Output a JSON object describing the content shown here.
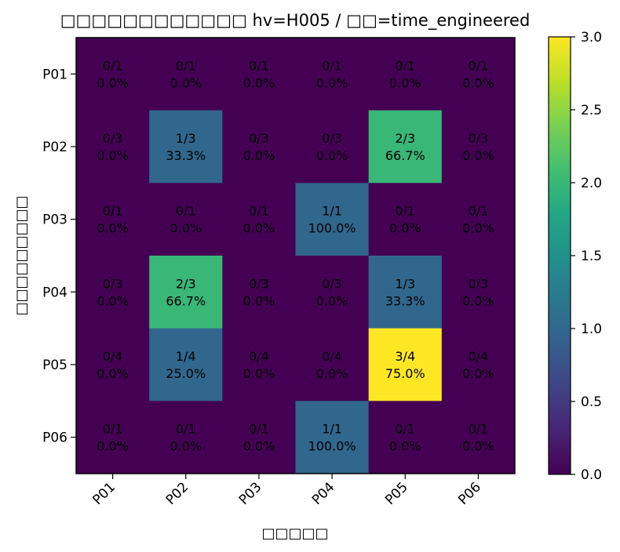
{
  "chart_data": {
    "type": "heatmap",
    "title": "□□□□□□□□□□□□ hv=H005 / □□=time_engineered",
    "xlabel": "□□□□□",
    "ylabel": "□□□□□□□□□",
    "x_categories": [
      "P01",
      "P02",
      "P03",
      "P04",
      "P05",
      "P06"
    ],
    "y_categories": [
      "P01",
      "P02",
      "P03",
      "P04",
      "P05",
      "P06"
    ],
    "values": [
      [
        0,
        0,
        0,
        0,
        0,
        0
      ],
      [
        0,
        1,
        0,
        0,
        2,
        0
      ],
      [
        0,
        0,
        0,
        1,
        0,
        0
      ],
      [
        0,
        2,
        0,
        0,
        1,
        0
      ],
      [
        0,
        1,
        0,
        0,
        3,
        0
      ],
      [
        0,
        0,
        0,
        1,
        0,
        0
      ]
    ],
    "row_totals": [
      1,
      3,
      1,
      3,
      4,
      1
    ],
    "cell_labels": [
      [
        "0/1\n0.0%",
        "0/1\n0.0%",
        "0/1\n0.0%",
        "0/1\n0.0%",
        "0/1\n0.0%",
        "0/1\n0.0%"
      ],
      [
        "0/3\n0.0%",
        "1/3\n33.3%",
        "0/3\n0.0%",
        "0/3\n0.0%",
        "2/3\n66.7%",
        "0/3\n0.0%"
      ],
      [
        "0/1\n0.0%",
        "0/1\n0.0%",
        "0/1\n0.0%",
        "1/1\n100.0%",
        "0/1\n0.0%",
        "0/1\n0.0%"
      ],
      [
        "0/3\n0.0%",
        "2/3\n66.7%",
        "0/3\n0.0%",
        "0/3\n0.0%",
        "1/3\n33.3%",
        "0/3\n0.0%"
      ],
      [
        "0/4\n0.0%",
        "1/4\n25.0%",
        "0/4\n0.0%",
        "0/4\n0.0%",
        "3/4\n75.0%",
        "0/4\n0.0%"
      ],
      [
        "0/1\n0.0%",
        "0/1\n0.0%",
        "0/1\n0.0%",
        "1/1\n100.0%",
        "0/1\n0.0%",
        "0/1\n0.0%"
      ]
    ],
    "colorbar": {
      "colormap": "viridis",
      "range": [
        0,
        3
      ],
      "ticks": [
        "0.0",
        "0.5",
        "1.0",
        "1.5",
        "2.0",
        "2.5",
        "3.0"
      ]
    }
  }
}
